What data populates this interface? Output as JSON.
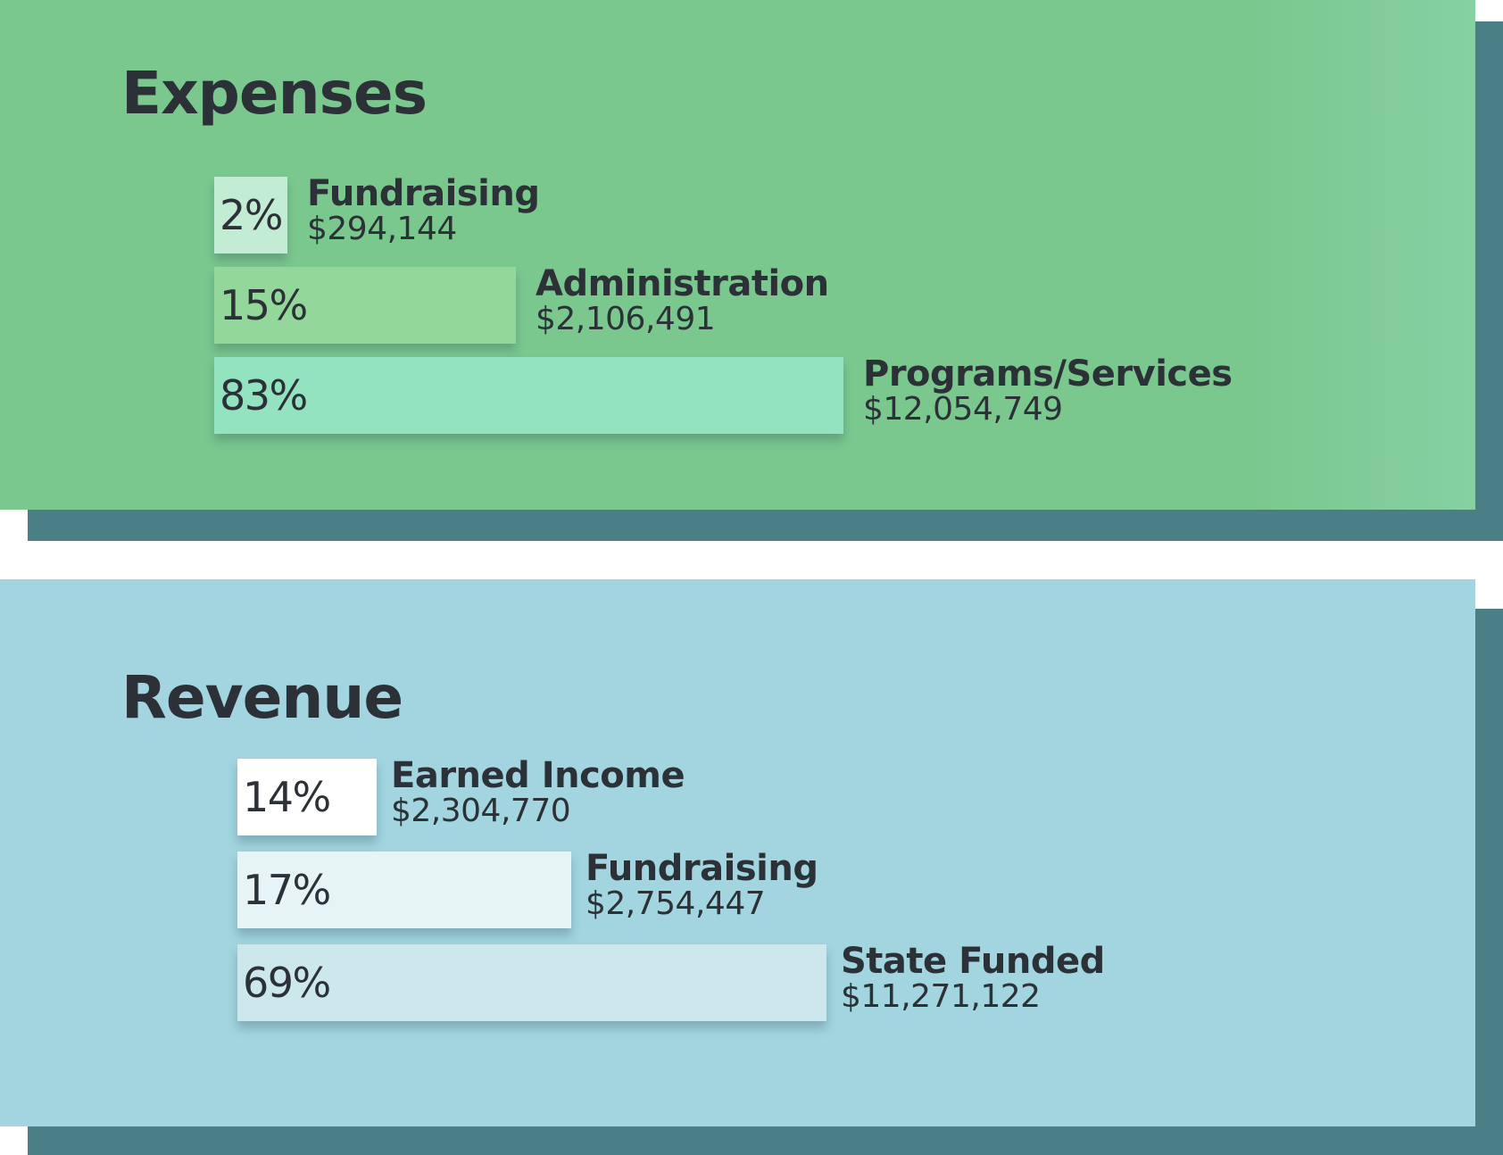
{
  "chart_data": [
    {
      "type": "bar",
      "orientation": "horizontal",
      "title": "Expenses",
      "panel_color": "#7bc88f",
      "shadow_color": "#4b7f86",
      "categories": [
        "Fundraising",
        "Administration",
        "Programs/Services"
      ],
      "values": [
        294144,
        2106491,
        12054749
      ],
      "amount_labels": [
        "$294,144",
        "$2,106,491",
        "$12,054,749"
      ],
      "percents": [
        2,
        15,
        83
      ],
      "percent_labels": [
        "2%",
        "15%",
        "83%"
      ],
      "bar_colors": [
        "#c3ecd5",
        "#94d79a",
        "#93e2c0"
      ]
    },
    {
      "type": "bar",
      "orientation": "horizontal",
      "title": "Revenue",
      "panel_color": "#a2d5e0",
      "shadow_color": "#4b7f86",
      "categories": [
        "Earned Income",
        "Fundraising",
        "State Funded"
      ],
      "values": [
        2304770,
        2754447,
        11271122
      ],
      "amount_labels": [
        "$2,304,770",
        "$2,754,447",
        "$11,271,122"
      ],
      "percents": [
        14,
        17,
        69
      ],
      "percent_labels": [
        "14%",
        "17%",
        "69%"
      ],
      "bar_colors": [
        "#ffffff",
        "#e6f4f6",
        "#cde8ed"
      ]
    }
  ]
}
